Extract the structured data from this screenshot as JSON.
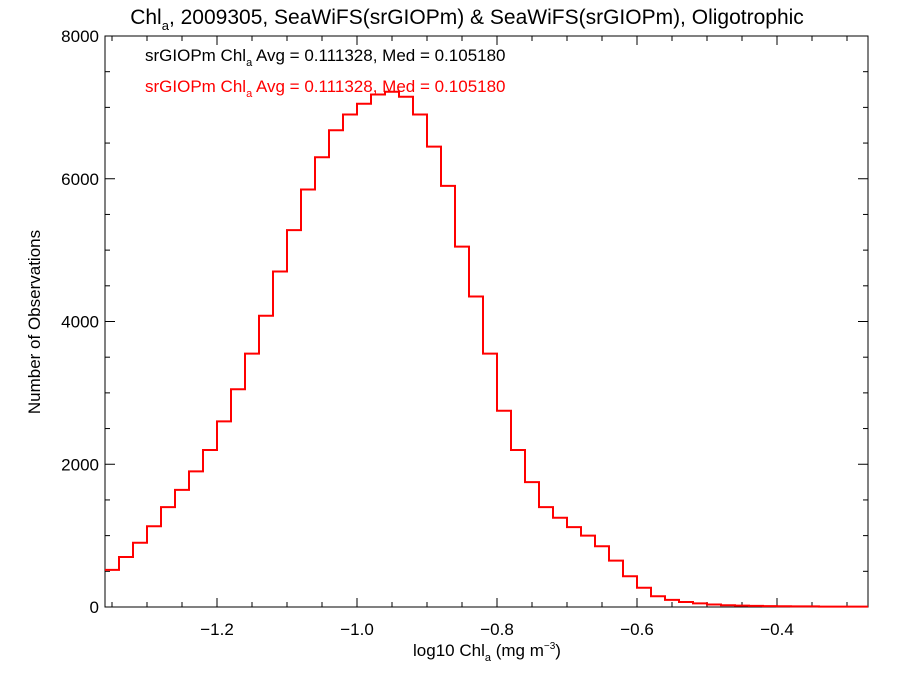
{
  "chart_data": {
    "type": "line",
    "title": {
      "prefix": "Chl",
      "sub": "a",
      "rest": ", 2009305, SeaWiFS(srGIOPm) & SeaWiFS(srGIOPm), Oligotrophic"
    },
    "xlabel": {
      "prefix": "log10 Chl",
      "sub": "a",
      "middle": " (mg m",
      "sup": "−3",
      "suffix": ")"
    },
    "ylabel": "Number of Observations",
    "xlim": [
      -1.36,
      -0.27
    ],
    "ylim": [
      0,
      8000
    ],
    "xticks": [
      -1.2,
      -1.0,
      -0.8,
      -0.6,
      -0.4
    ],
    "xtick_labels": [
      "−1.2",
      "−1.0",
      "−0.8",
      "−0.6",
      "−0.4"
    ],
    "yticks": [
      0,
      2000,
      4000,
      6000,
      8000
    ],
    "ytick_labels": [
      "0",
      "2000",
      "4000",
      "6000",
      "8000"
    ],
    "grid": false,
    "annotations": [
      {
        "prefix": "srGIOPm Chl",
        "sub": "a",
        "rest": " Avg = 0.111328, Med = 0.105180",
        "color": "#000000"
      },
      {
        "prefix": "srGIOPm Chl",
        "sub": "a",
        "rest": " Avg = 0.111328, Med = 0.105180",
        "color": "#ff0000"
      }
    ],
    "series": [
      {
        "color": "#ff0000",
        "step": true,
        "x": [
          -1.36,
          -1.34,
          -1.32,
          -1.3,
          -1.28,
          -1.26,
          -1.24,
          -1.22,
          -1.2,
          -1.18,
          -1.16,
          -1.14,
          -1.12,
          -1.1,
          -1.08,
          -1.06,
          -1.04,
          -1.02,
          -1.0,
          -0.98,
          -0.96,
          -0.94,
          -0.92,
          -0.9,
          -0.88,
          -0.86,
          -0.84,
          -0.82,
          -0.8,
          -0.78,
          -0.76,
          -0.74,
          -0.72,
          -0.7,
          -0.68,
          -0.66,
          -0.64,
          -0.62,
          -0.6,
          -0.58,
          -0.56,
          -0.54,
          -0.52,
          -0.5,
          -0.48,
          -0.46,
          -0.44,
          -0.42,
          -0.4,
          -0.38,
          -0.36,
          -0.34,
          -0.32,
          -0.3,
          -0.28
        ],
        "y": [
          520,
          700,
          900,
          1130,
          1400,
          1640,
          1900,
          2200,
          2600,
          3050,
          3550,
          4080,
          4700,
          5280,
          5850,
          6300,
          6680,
          6900,
          7050,
          7180,
          7220,
          7150,
          6900,
          6450,
          5900,
          5050,
          4350,
          3550,
          2750,
          2200,
          1750,
          1400,
          1250,
          1120,
          1000,
          850,
          650,
          430,
          270,
          150,
          100,
          70,
          50,
          35,
          25,
          20,
          15,
          12,
          10,
          8,
          8,
          6,
          6,
          5,
          5
        ]
      }
    ]
  }
}
